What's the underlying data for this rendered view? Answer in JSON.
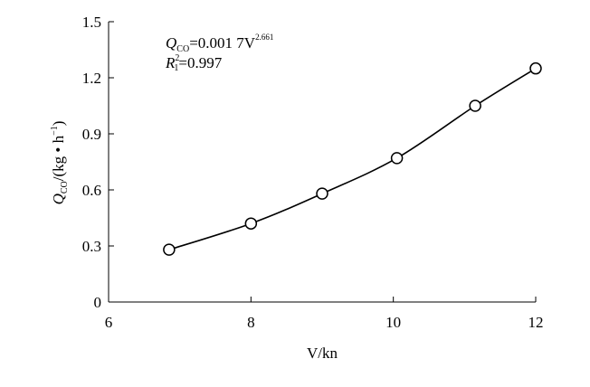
{
  "chart_data": {
    "type": "scatter",
    "xlabel": "V/kn",
    "ylabel": "Q_CO/(kg • h⁻¹)",
    "xlim": [
      6,
      12
    ],
    "ylim": [
      0,
      1.5
    ],
    "xticks": [
      "6",
      "8",
      "10",
      "12"
    ],
    "yticks": [
      "0",
      "0.3",
      "0.6",
      "0.9",
      "1.2",
      "1.5"
    ],
    "x": [
      6.85,
      8.0,
      9.0,
      10.05,
      11.15,
      12.0
    ],
    "y": [
      0.28,
      0.42,
      0.58,
      0.77,
      1.05,
      1.25
    ],
    "fit": {
      "coef": 0.0017,
      "exponent": 2.661
    },
    "annotation": {
      "equation_lhs": "Q",
      "equation_lhs_sub": "CO",
      "equation_rhs": "=0.001 7V",
      "equation_sup": "2.661",
      "r2_label": "R",
      "r2_sup": "2",
      "r2_sub": "1",
      "r2_value": "=0.997"
    },
    "grid": false,
    "legend": "none",
    "colors": {
      "line": "#000000",
      "marker_fill": "#ffffff"
    }
  }
}
